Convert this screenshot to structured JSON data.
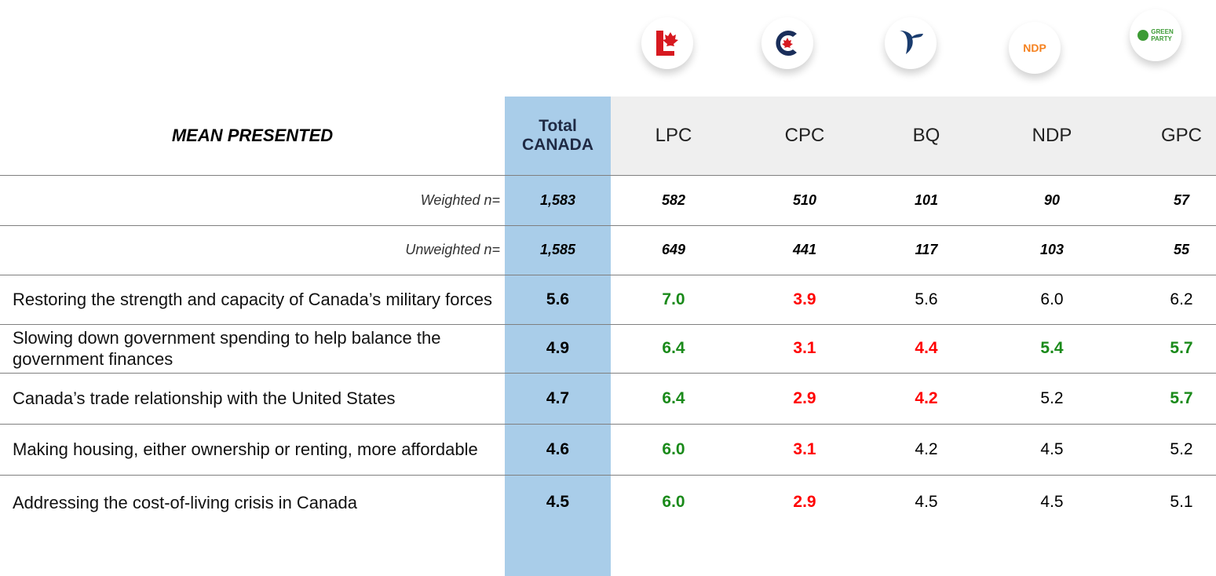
{
  "header": {
    "title": "MEAN PRESENTED",
    "total": [
      "Total",
      "CANADA"
    ],
    "parties": [
      "LPC",
      "CPC",
      "BQ",
      "NDP",
      "GPC"
    ]
  },
  "logos": {
    "ndp": "NDP",
    "green": [
      "GREEN",
      "PARTY"
    ]
  },
  "n_rows": [
    {
      "label": "Weighted n=",
      "values": [
        "1,583",
        "582",
        "510",
        "101",
        "90",
        "57"
      ]
    },
    {
      "label": "Unweighted n=",
      "values": [
        "1,585",
        "649",
        "441",
        "117",
        "103",
        "55"
      ]
    }
  ],
  "rows": [
    {
      "label": "Restoring the strength and capacity of Canada’s military forces",
      "values": [
        "5.6",
        "7.0",
        "3.9",
        "5.6",
        "6.0",
        "6.2"
      ],
      "colors": [
        "#000000",
        "#1a8a1a",
        "#ff0000",
        "#000000",
        "#000000",
        "#000000"
      ]
    },
    {
      "label": "Slowing down government spending to help balance the government finances",
      "values": [
        "4.9",
        "6.4",
        "3.1",
        "4.4",
        "5.4",
        "5.7"
      ],
      "colors": [
        "#000000",
        "#1a8a1a",
        "#ff0000",
        "#ff0000",
        "#1a8a1a",
        "#1a8a1a"
      ]
    },
    {
      "label": "Canada’s trade relationship with the United States",
      "values": [
        "4.7",
        "6.4",
        "2.9",
        "4.2",
        "5.2",
        "5.7"
      ],
      "colors": [
        "#000000",
        "#1a8a1a",
        "#ff0000",
        "#ff0000",
        "#000000",
        "#1a8a1a"
      ]
    },
    {
      "label": "Making housing, either ownership or renting, more affordable",
      "values": [
        "4.6",
        "6.0",
        "3.1",
        "4.2",
        "4.5",
        "5.2"
      ],
      "colors": [
        "#000000",
        "#1a8a1a",
        "#ff0000",
        "#000000",
        "#000000",
        "#000000"
      ]
    },
    {
      "label": "Addressing the cost-of-living crisis in Canada",
      "values": [
        "4.5",
        "6.0",
        "2.9",
        "4.5",
        "4.5",
        "5.1"
      ],
      "colors": [
        "#000000",
        "#1a8a1a",
        "#ff0000",
        "#000000",
        "#000000",
        "#000000"
      ]
    }
  ]
}
